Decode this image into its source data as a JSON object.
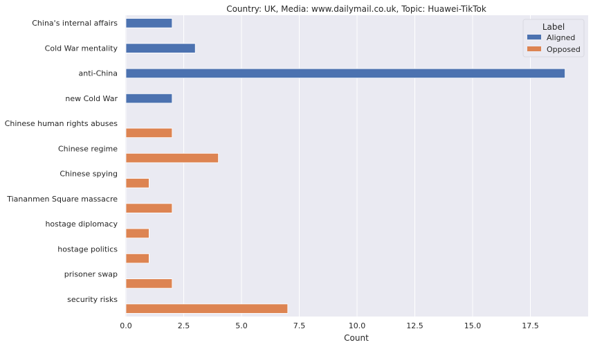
{
  "chart_data": {
    "type": "bar",
    "orientation": "horizontal",
    "title": "Country: UK, Media: www.dailymail.co.uk, Topic: Huawei-TikTok",
    "xlabel": "Count",
    "ylabel": "",
    "xlim": [
      0,
      20
    ],
    "x_ticks": [
      0,
      2.5,
      5,
      7.5,
      10,
      12.5,
      15,
      17.5
    ],
    "x_tick_labels": [
      "0.0",
      "2.5",
      "5.0",
      "7.5",
      "10.0",
      "12.5",
      "15.0",
      "17.5"
    ],
    "categories": [
      "China's internal affairs",
      "Cold War mentality",
      "anti-China",
      "new Cold War",
      "Chinese human rights abuses",
      "Chinese regime",
      "Chinese spying",
      "Tiananmen Square massacre",
      "hostage diplomacy",
      "hostage politics",
      "prisoner swap",
      "security risks"
    ],
    "series": [
      {
        "name": "Aligned",
        "color": "#4c72b0",
        "values": [
          2,
          3,
          19,
          2,
          null,
          null,
          null,
          null,
          null,
          null,
          null,
          null
        ]
      },
      {
        "name": "Opposed",
        "color": "#dd8452",
        "values": [
          null,
          null,
          null,
          null,
          2,
          4,
          1,
          2,
          1,
          1,
          2,
          7
        ]
      }
    ],
    "grid": true,
    "legend": {
      "title": "Label",
      "placement": "top-right"
    },
    "plot_background": "#eaeaf2",
    "grid_color": "#ffffff"
  }
}
